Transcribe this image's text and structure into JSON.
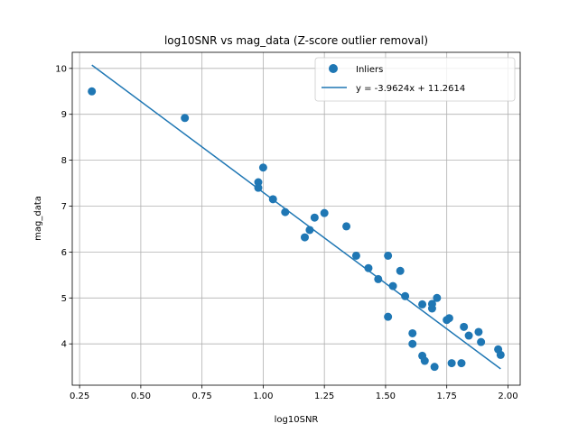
{
  "chart_data": {
    "type": "scatter",
    "title": "log10SNR vs mag_data (Z-score outlier removal)",
    "xlabel": "log10SNR",
    "ylabel": "mag_data",
    "xlim": [
      0.22,
      2.05
    ],
    "ylim": [
      3.1,
      10.35
    ],
    "xticks": [
      0.25,
      0.5,
      0.75,
      1.0,
      1.25,
      1.5,
      1.75,
      2.0
    ],
    "xtick_labels": [
      "0.25",
      "0.50",
      "0.75",
      "1.00",
      "1.25",
      "1.50",
      "1.75",
      "2.00"
    ],
    "yticks": [
      4,
      5,
      6,
      7,
      8,
      9,
      10
    ],
    "ytick_labels": [
      "4",
      "5",
      "6",
      "7",
      "8",
      "9",
      "10"
    ],
    "grid": true,
    "legend_position": "top-right",
    "point_color": "#1f77b4",
    "line_color": "#1f77b4",
    "series": [
      {
        "name": "Inliers",
        "kind": "scatter",
        "points": [
          [
            0.3,
            9.5
          ],
          [
            0.68,
            8.92
          ],
          [
            0.98,
            7.52
          ],
          [
            0.98,
            7.4
          ],
          [
            1.0,
            7.84
          ],
          [
            1.04,
            7.15
          ],
          [
            1.09,
            6.87
          ],
          [
            1.17,
            6.32
          ],
          [
            1.19,
            6.48
          ],
          [
            1.21,
            6.75
          ],
          [
            1.25,
            6.85
          ],
          [
            1.34,
            6.56
          ],
          [
            1.38,
            5.92
          ],
          [
            1.43,
            5.65
          ],
          [
            1.47,
            5.41
          ],
          [
            1.51,
            5.92
          ],
          [
            1.53,
            5.26
          ],
          [
            1.56,
            5.59
          ],
          [
            1.58,
            5.04
          ],
          [
            1.51,
            4.59
          ],
          [
            1.61,
            4.23
          ],
          [
            1.61,
            4.0
          ],
          [
            1.65,
            4.86
          ],
          [
            1.65,
            3.74
          ],
          [
            1.66,
            3.63
          ],
          [
            1.69,
            4.87
          ],
          [
            1.69,
            4.77
          ],
          [
            1.7,
            3.5
          ],
          [
            1.71,
            5.0
          ],
          [
            1.75,
            4.52
          ],
          [
            1.76,
            4.56
          ],
          [
            1.77,
            3.58
          ],
          [
            1.81,
            3.58
          ],
          [
            1.82,
            4.37
          ],
          [
            1.84,
            4.18
          ],
          [
            1.88,
            4.26
          ],
          [
            1.89,
            4.04
          ],
          [
            1.96,
            3.88
          ],
          [
            1.97,
            3.76
          ]
        ]
      },
      {
        "name": "y = -3.9624x + 11.2614",
        "kind": "line",
        "slope": -3.9624,
        "intercept": 11.2614,
        "x_range": [
          0.3,
          1.97
        ]
      }
    ]
  }
}
